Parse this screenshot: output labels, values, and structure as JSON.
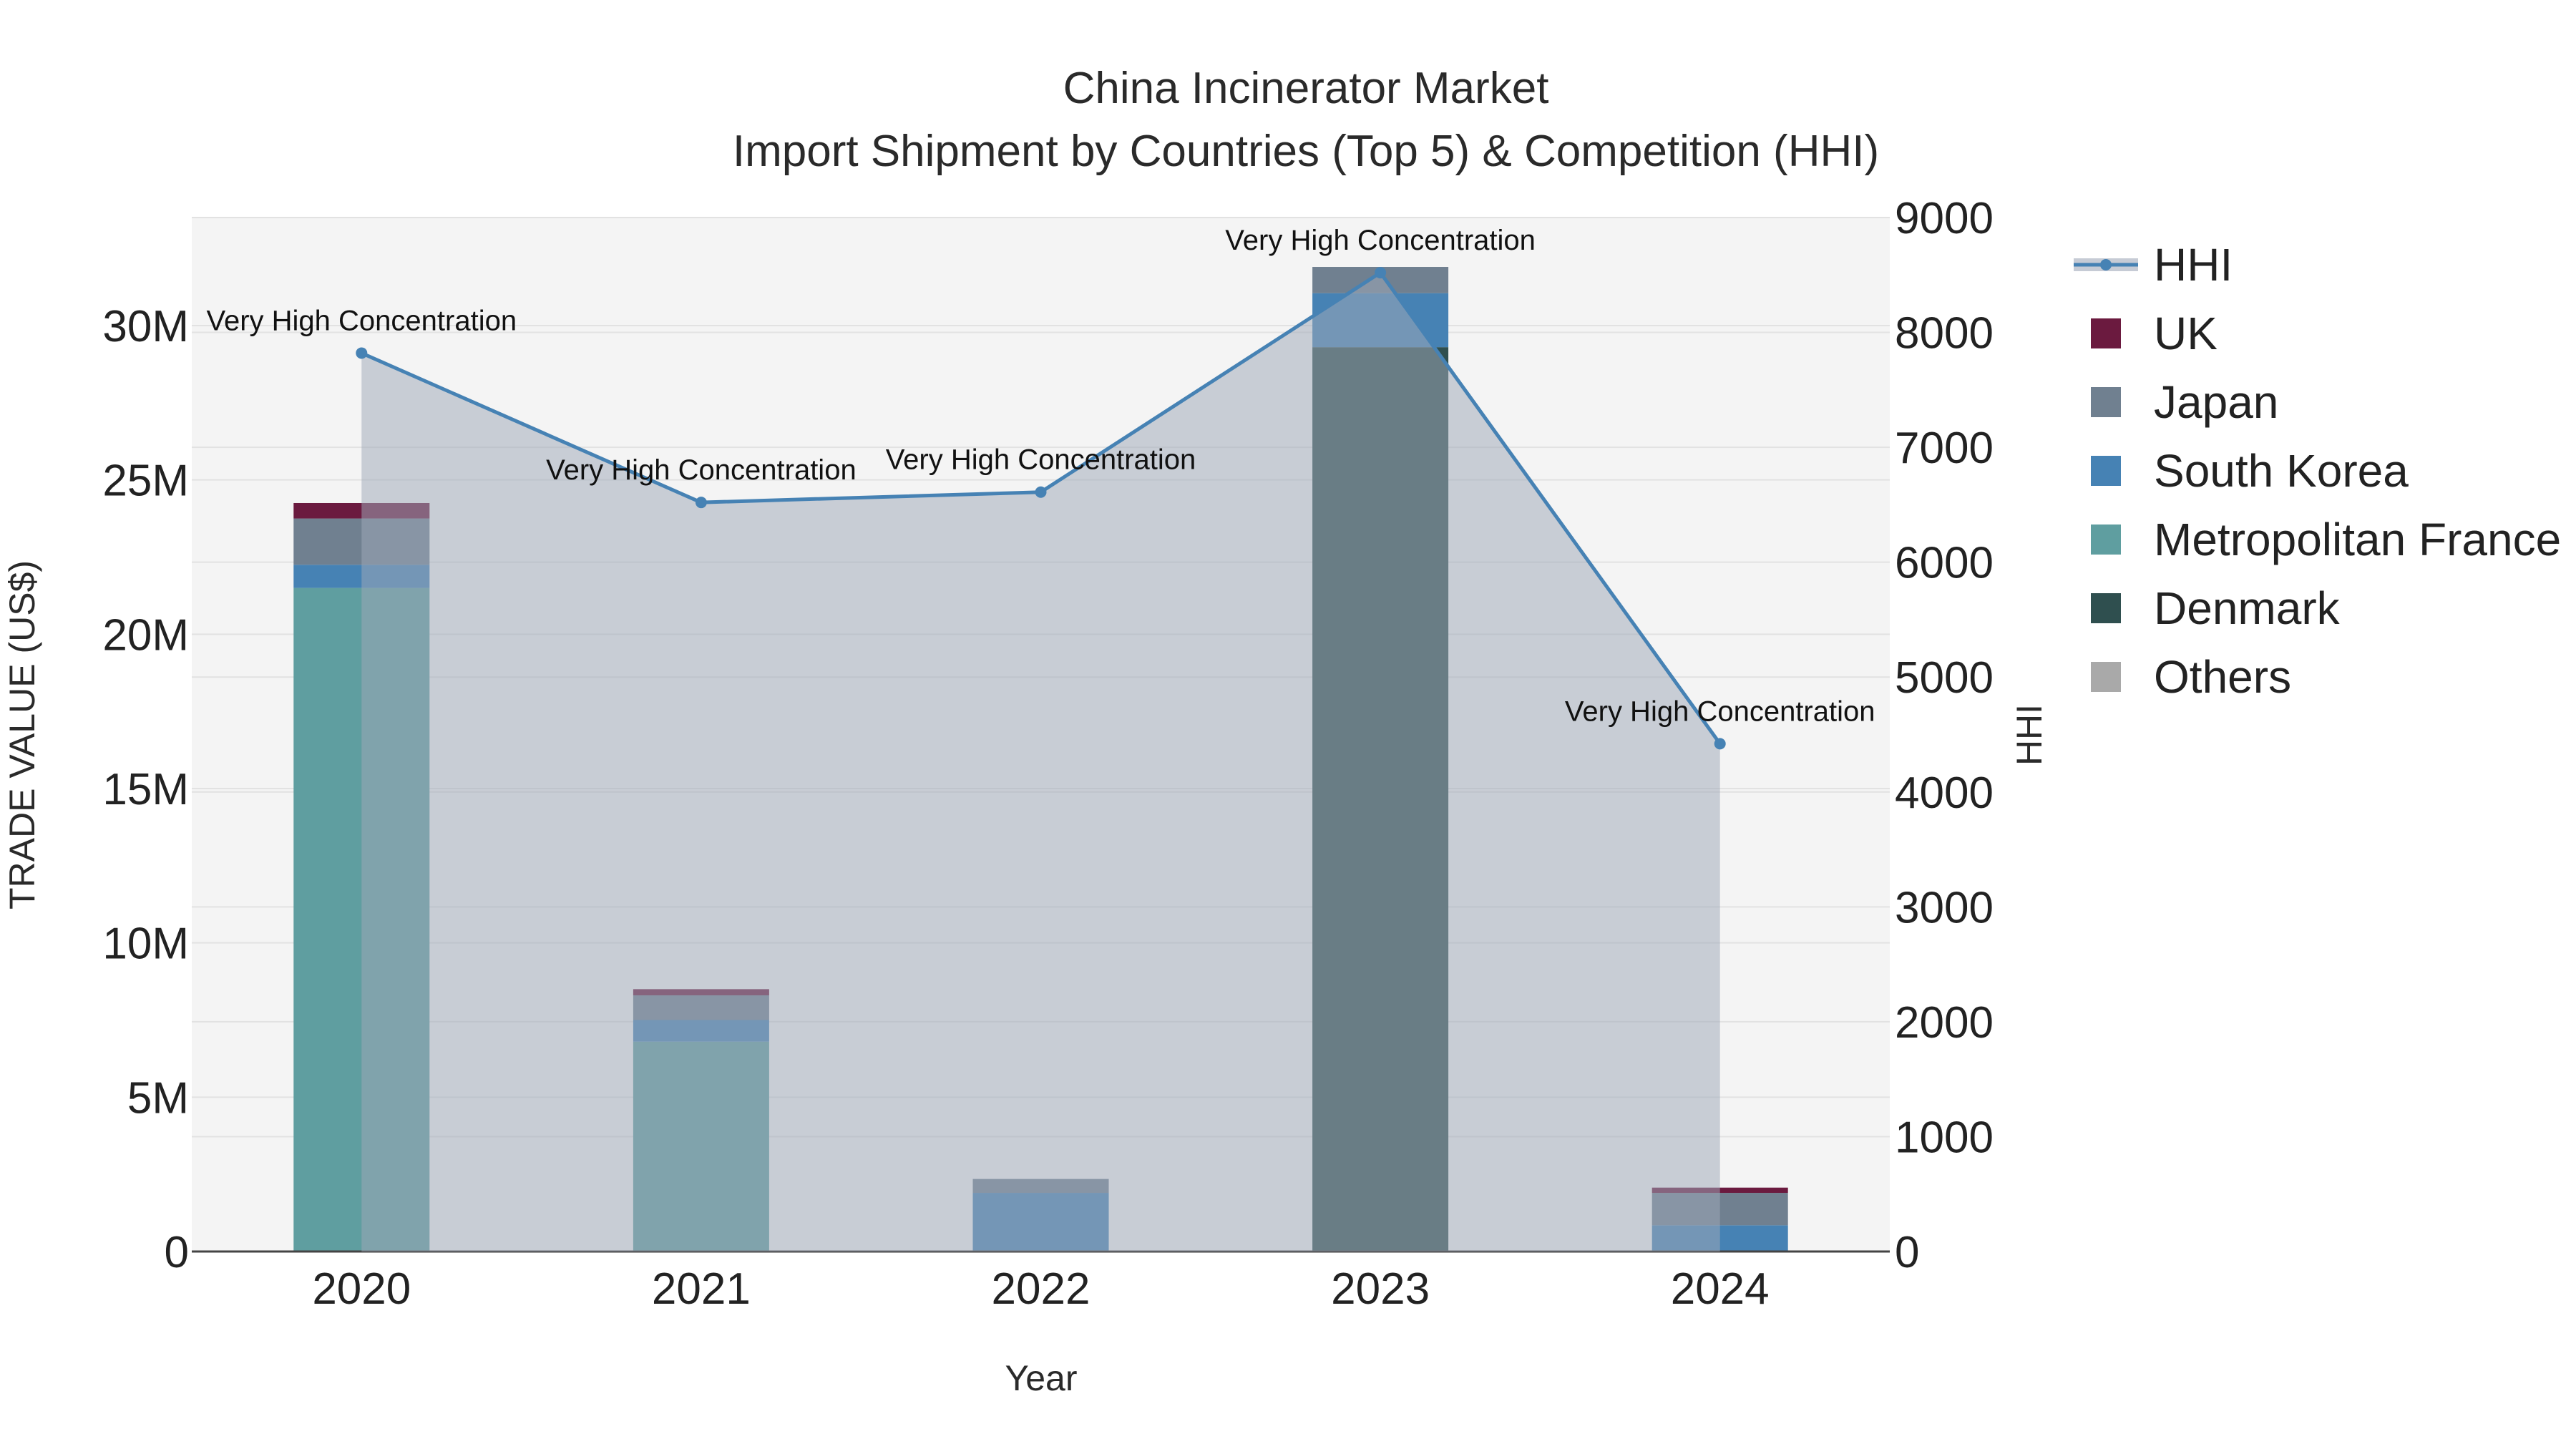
{
  "chart_data": {
    "type": "bar",
    "title": "China Incinerator Market",
    "subtitle": "Import Shipment by Countries (Top 5) & Competition (HHI)",
    "xlabel": "Year",
    "ylabel": "TRADE VALUE (US$)",
    "y2label": "HHI",
    "categories": [
      "2020",
      "2021",
      "2022",
      "2023",
      "2024"
    ],
    "ylim": [
      0,
      33500000
    ],
    "y2lim": [
      0,
      9000
    ],
    "yticks": [
      {
        "value": 0,
        "label": "0"
      },
      {
        "value": 5000000,
        "label": "5M"
      },
      {
        "value": 10000000,
        "label": "10M"
      },
      {
        "value": 15000000,
        "label": "15M"
      },
      {
        "value": 20000000,
        "label": "20M"
      },
      {
        "value": 25000000,
        "label": "25M"
      },
      {
        "value": 30000000,
        "label": "30M"
      }
    ],
    "y2ticks": [
      {
        "value": 0,
        "label": "0"
      },
      {
        "value": 1000,
        "label": "1000"
      },
      {
        "value": 2000,
        "label": "2000"
      },
      {
        "value": 3000,
        "label": "3000"
      },
      {
        "value": 4000,
        "label": "4000"
      },
      {
        "value": 5000,
        "label": "5000"
      },
      {
        "value": 6000,
        "label": "6000"
      },
      {
        "value": 7000,
        "label": "7000"
      },
      {
        "value": 8000,
        "label": "8000"
      },
      {
        "value": 9000,
        "label": "9000"
      }
    ],
    "series": [
      {
        "name": "Others",
        "color": "#a9a9a9",
        "values": [
          0,
          0,
          0,
          0,
          0
        ]
      },
      {
        "name": "Denmark",
        "color": "#2f4f4f",
        "values": [
          0,
          0,
          0,
          29300000,
          0
        ]
      },
      {
        "name": "Metropolitan France",
        "color": "#5f9ea0",
        "values": [
          21500000,
          6800000,
          0,
          0,
          0
        ]
      },
      {
        "name": "South Korea",
        "color": "#4682b4",
        "values": [
          750000,
          700000,
          1900000,
          1750000,
          850000
        ]
      },
      {
        "name": "Japan",
        "color": "#708090",
        "values": [
          1500000,
          800000,
          450000,
          850000,
          1050000
        ]
      },
      {
        "name": "UK",
        "color": "#6b1a3f",
        "values": [
          500000,
          200000,
          0,
          0,
          170000
        ]
      }
    ],
    "hhi": {
      "name": "HHI",
      "color": "#4682b4",
      "values": [
        7820,
        6520,
        6610,
        8520,
        4420
      ],
      "labels": [
        "Very High Concentration",
        "Very High Concentration",
        "Very High Concentration",
        "Very High Concentration",
        "Very High Concentration"
      ]
    },
    "legend": [
      "HHI",
      "UK",
      "Japan",
      "South Korea",
      "Metropolitan France",
      "Denmark",
      "Others"
    ],
    "legend_position": "right"
  }
}
